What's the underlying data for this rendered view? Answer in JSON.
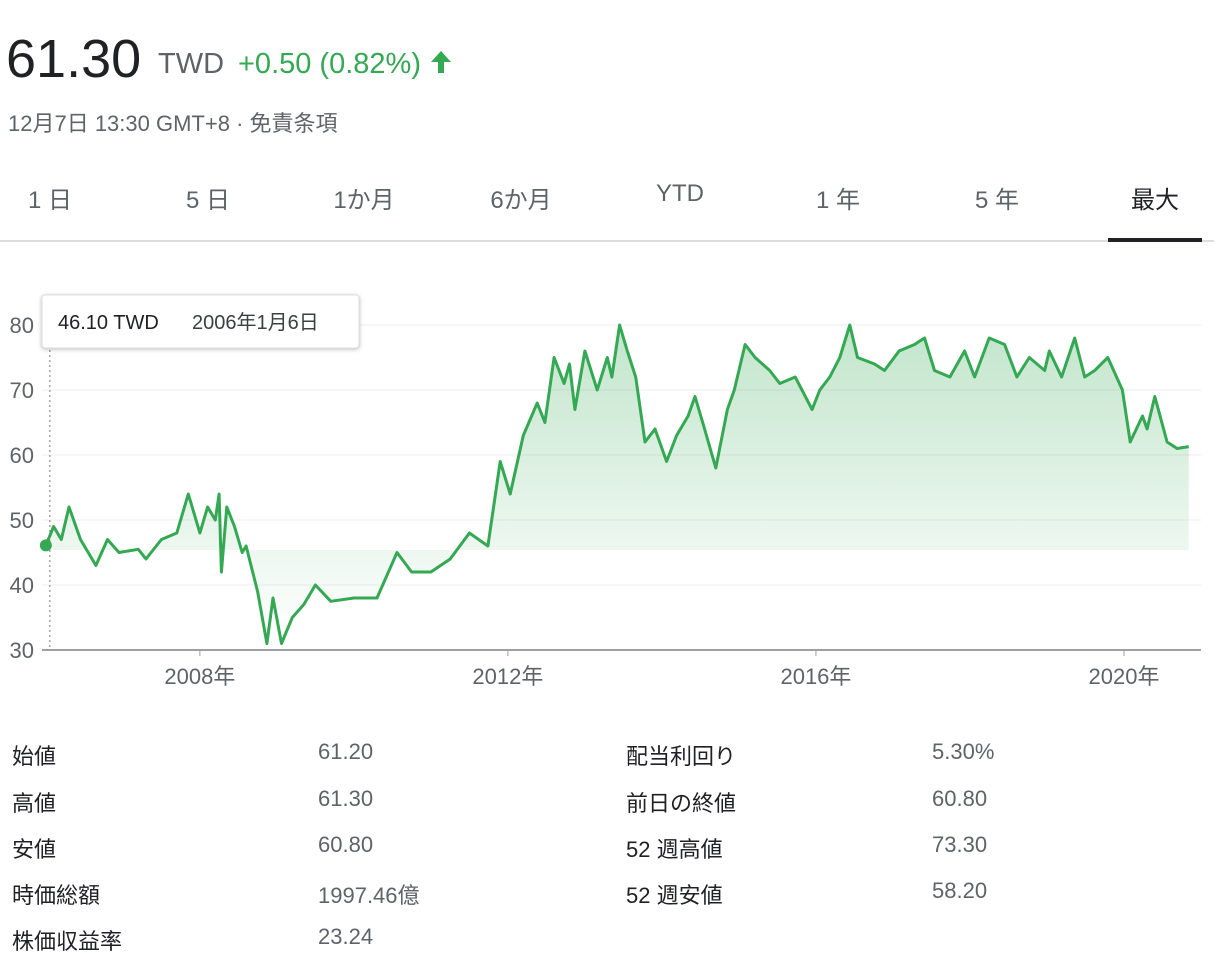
{
  "header": {
    "price": "61.30",
    "currency": "TWD",
    "change": "+0.50 (0.82%)",
    "timestamp": "12月7日 13:30 GMT+8",
    "disclaimer": "免責条項"
  },
  "tabs": [
    "1 日",
    "5 日",
    "1か月",
    "6か月",
    "YTD",
    "1 年",
    "5 年",
    "最大"
  ],
  "active_tab": 7,
  "chart_data": {
    "type": "line",
    "x": [
      2006.0,
      2006.1,
      2006.2,
      2006.3,
      2006.45,
      2006.55,
      2006.65,
      2006.8,
      2006.95,
      2007.2,
      2007.3,
      2007.5,
      2007.7,
      2007.85,
      2008.0,
      2008.1,
      2008.2,
      2008.25,
      2008.28,
      2008.35,
      2008.45,
      2008.55,
      2008.6,
      2008.75,
      2008.87,
      2008.95,
      2009.06,
      2009.2,
      2009.35,
      2009.5,
      2009.7,
      2010.0,
      2010.3,
      2010.56,
      2010.75,
      2011.0,
      2011.25,
      2011.5,
      2011.74,
      2011.9,
      2012.03,
      2012.2,
      2012.38,
      2012.48,
      2012.6,
      2012.73,
      2012.8,
      2012.87,
      2013.0,
      2013.16,
      2013.29,
      2013.35,
      2013.45,
      2013.55,
      2013.66,
      2013.78,
      2013.91,
      2014.06,
      2014.19,
      2014.34,
      2014.43,
      2014.53,
      2014.7,
      2014.85,
      2014.94,
      2015.08,
      2015.21,
      2015.4,
      2015.53,
      2015.73,
      2015.95,
      2016.05,
      2016.18,
      2016.31,
      2016.44,
      2016.54,
      2016.76,
      2016.89,
      2017.08,
      2017.28,
      2017.41,
      2017.54,
      2017.74,
      2017.93,
      2018.06,
      2018.25,
      2018.45,
      2018.61,
      2018.77,
      2018.97,
      2019.03,
      2019.19,
      2019.36,
      2019.49,
      2019.62,
      2019.79,
      2019.98,
      2020.08,
      2020.24,
      2020.3,
      2020.4,
      2020.56,
      2020.69,
      2020.84
    ],
    "values": [
      46.1,
      49,
      47,
      52,
      47,
      45,
      43,
      47,
      45,
      45.5,
      44,
      47,
      48,
      54,
      48,
      52,
      50,
      54,
      42,
      52,
      49,
      45,
      46,
      39,
      31,
      38,
      31,
      35,
      37,
      40,
      37.5,
      38,
      38,
      45,
      42,
      42,
      44,
      48,
      46,
      59,
      54,
      63,
      68,
      65,
      75,
      71,
      74,
      67,
      76,
      70,
      75,
      72,
      80,
      76,
      72,
      62,
      64,
      59,
      63,
      66,
      69,
      65,
      58,
      67,
      70,
      77,
      75,
      73,
      71,
      72,
      67,
      70,
      72,
      75,
      80,
      75,
      74,
      73,
      76,
      77,
      78,
      73,
      72,
      76,
      72,
      78,
      77,
      72,
      75,
      73,
      76,
      72,
      78,
      72,
      73,
      75,
      70,
      62,
      66,
      64,
      69,
      62,
      61,
      61.3
    ],
    "color": "#34a853",
    "xlim": [
      2005.95,
      2021.0
    ],
    "xticks": [
      {
        "value": 2008,
        "label": "2008年"
      },
      {
        "value": 2012,
        "label": "2012年"
      },
      {
        "value": 2016,
        "label": "2016年"
      },
      {
        "value": 2020,
        "label": "2020年"
      }
    ],
    "ylim": [
      30,
      80
    ],
    "yticks": [
      30,
      40,
      50,
      60,
      70,
      80
    ],
    "grid": true,
    "tooltip": {
      "value": "46.10 TWD",
      "date": "2006年1月6日"
    }
  },
  "stats": {
    "left": [
      {
        "label": "始値",
        "value": "61.20"
      },
      {
        "label": "高値",
        "value": "61.30"
      },
      {
        "label": "安値",
        "value": "60.80"
      },
      {
        "label": "時価総額",
        "value": "1997.46億"
      },
      {
        "label": "株価収益率",
        "value": "23.24"
      }
    ],
    "right": [
      {
        "label": "配当利回り",
        "value": "5.30%"
      },
      {
        "label": "前日の終値",
        "value": "60.80"
      },
      {
        "label": "52 週高値",
        "value": "73.30"
      },
      {
        "label": "52 週安値",
        "value": "58.20"
      }
    ]
  }
}
